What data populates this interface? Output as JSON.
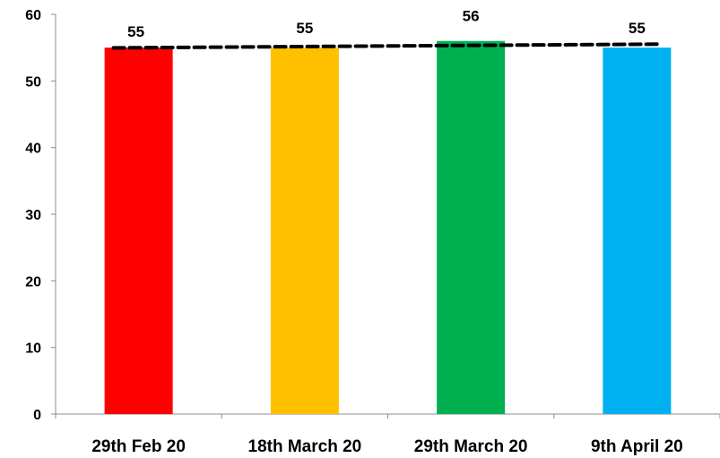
{
  "chart_data": {
    "type": "bar",
    "categories": [
      "29th Feb 20",
      "18th March 20",
      "29th March 20",
      "9th April 20"
    ],
    "values": [
      55,
      55,
      56,
      55
    ],
    "bar_colors": [
      "#ff0000",
      "#ffc000",
      "#00b050",
      "#00b0f0"
    ],
    "trendline": {
      "style": "dashed",
      "color": "#000000"
    },
    "ylim": [
      0,
      60
    ],
    "yticks": [
      "0",
      "10",
      "20",
      "30",
      "40",
      "50",
      "60"
    ],
    "data_labels": [
      "55",
      "55",
      "56",
      "55"
    ],
    "grid": false,
    "legend": "none"
  }
}
